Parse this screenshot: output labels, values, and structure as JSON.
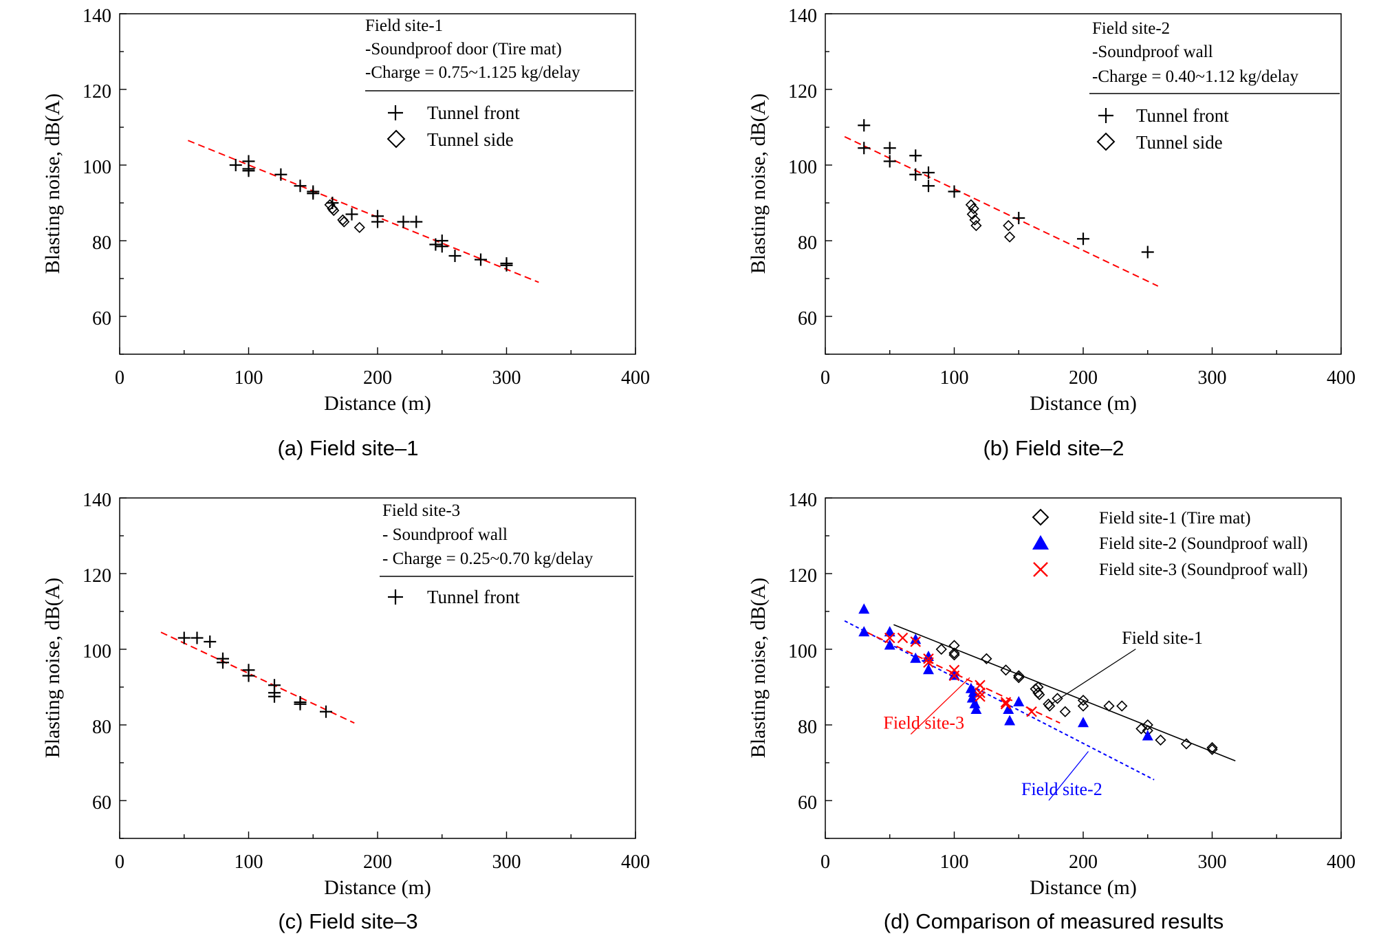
{
  "chart_data": [
    {
      "type": "scatter",
      "caption": "(a) Field site–1",
      "xlabel": "Distance (m)",
      "ylabel": "Blasting noise, dB(A)",
      "xlim": [
        0,
        400
      ],
      "ylim": [
        50,
        140
      ],
      "xticks": [
        "0",
        "100",
        "200",
        "300",
        "400"
      ],
      "yticks": [
        "60",
        "80",
        "100",
        "120",
        "140"
      ],
      "grid": false,
      "legend_position": "top-right",
      "legend_header": [
        "Field site-1",
        "-Soundproof door (Tire mat)",
        "-Charge = 0.75~1.125 kg/delay"
      ],
      "series": [
        {
          "name": "Tunnel front",
          "marker": "plus",
          "color": "#000000",
          "points": [
            [
              90,
              100
            ],
            [
              100,
              101
            ],
            [
              100,
              99
            ],
            [
              100,
              98.5
            ],
            [
              125,
              97.5
            ],
            [
              140,
              94.5
            ],
            [
              150,
              93
            ],
            [
              150,
              92.5
            ],
            [
              165,
              90
            ],
            [
              180,
              87
            ],
            [
              200,
              86.5
            ],
            [
              200,
              85
            ],
            [
              220,
              85
            ],
            [
              230,
              85
            ],
            [
              245,
              79
            ],
            [
              250,
              80
            ],
            [
              250,
              78.5
            ],
            [
              260,
              76
            ],
            [
              280,
              75
            ],
            [
              300,
              74
            ],
            [
              300,
              73.5
            ]
          ]
        },
        {
          "name": "Tunnel side",
          "marker": "diamond",
          "color": "#000000",
          "points": [
            [
              163,
              89.5
            ],
            [
              165,
              88.5
            ],
            [
              166,
              88
            ],
            [
              173,
              85.5
            ],
            [
              174,
              85
            ],
            [
              186,
              83.5
            ]
          ]
        },
        {
          "name": "",
          "type": "line",
          "style": "dashed",
          "color": "#ff0000",
          "points": [
            [
              53,
              106.5
            ],
            [
              325,
              69
            ]
          ]
        }
      ]
    },
    {
      "type": "scatter",
      "caption": "(b) Field site–2",
      "xlabel": "Distance (m)",
      "ylabel": "Blasting noise, dB(A)",
      "xlim": [
        0,
        400
      ],
      "ylim": [
        50,
        140
      ],
      "xticks": [
        "0",
        "100",
        "200",
        "300",
        "400"
      ],
      "yticks": [
        "60",
        "80",
        "100",
        "120",
        "140"
      ],
      "grid": false,
      "legend_position": "top-right",
      "legend_header": [
        "Field site-2",
        "-Soundproof wall",
        "-Charge = 0.40~1.12 kg/delay"
      ],
      "series": [
        {
          "name": "Tunnel front",
          "marker": "plus",
          "color": "#000000",
          "points": [
            [
              30,
              110.5
            ],
            [
              30,
              104.5
            ],
            [
              50,
              104.5
            ],
            [
              50,
              101
            ],
            [
              70,
              102.5
            ],
            [
              70,
              97.5
            ],
            [
              80,
              98
            ],
            [
              80,
              94.5
            ],
            [
              100,
              93
            ],
            [
              150,
              86
            ],
            [
              200,
              80.5
            ],
            [
              250,
              77
            ]
          ]
        },
        {
          "name": "Tunnel side",
          "marker": "diamond",
          "color": "#000000",
          "points": [
            [
              113,
              89.5
            ],
            [
              114,
              87
            ],
            [
              115,
              88.5
            ],
            [
              116,
              85.5
            ],
            [
              117,
              84
            ],
            [
              142,
              84
            ],
            [
              143,
              81
            ]
          ]
        },
        {
          "name": "",
          "type": "line",
          "style": "dashed",
          "color": "#ff0000",
          "points": [
            [
              15,
              107.5
            ],
            [
              258,
              68
            ]
          ]
        }
      ]
    },
    {
      "type": "scatter",
      "caption": "(c) Field site–3",
      "xlabel": "Distance (m)",
      "ylabel": "Blasting noise, dB(A)",
      "xlim": [
        0,
        400
      ],
      "ylim": [
        50,
        140
      ],
      "xticks": [
        "0",
        "100",
        "200",
        "300",
        "400"
      ],
      "yticks": [
        "60",
        "80",
        "100",
        "120",
        "140"
      ],
      "grid": false,
      "legend_position": "top-right",
      "legend_header": [
        "Field site-3",
        "- Soundproof wall",
        "- Charge = 0.25~0.70 kg/delay"
      ],
      "series": [
        {
          "name": "Tunnel front",
          "marker": "plus",
          "color": "#000000",
          "points": [
            [
              50,
              103
            ],
            [
              60,
              103
            ],
            [
              70,
              102
            ],
            [
              80,
              97.5
            ],
            [
              80,
              96.5
            ],
            [
              100,
              94.5
            ],
            [
              100,
              93
            ],
            [
              120,
              90.5
            ],
            [
              120,
              88.5
            ],
            [
              120,
              87.5
            ],
            [
              140,
              86
            ],
            [
              140,
              85.5
            ],
            [
              160,
              83.5
            ]
          ]
        },
        {
          "name": "",
          "type": "line",
          "style": "dashed",
          "color": "#ff0000",
          "points": [
            [
              32,
              104.5
            ],
            [
              182,
              80.5
            ]
          ]
        }
      ]
    },
    {
      "type": "scatter",
      "caption": "(d) Comparison of measured results",
      "xlabel": "Distance (m)",
      "ylabel": "Blasting noise, dB(A)",
      "xlim": [
        0,
        400
      ],
      "ylim": [
        50,
        140
      ],
      "xticks": [
        "0",
        "100",
        "200",
        "300",
        "400"
      ],
      "yticks": [
        "60",
        "80",
        "100",
        "120",
        "140"
      ],
      "grid": false,
      "legend_position": "top-right",
      "series": [
        {
          "name": "Field site-1 (Tire mat)",
          "marker": "diamond",
          "color": "#000000",
          "points": [
            [
              90,
              100
            ],
            [
              100,
              101
            ],
            [
              100,
              99
            ],
            [
              100,
              98.5
            ],
            [
              125,
              97.5
            ],
            [
              140,
              94.5
            ],
            [
              150,
              93
            ],
            [
              150,
              92.5
            ],
            [
              163,
              89.5
            ],
            [
              165,
              90
            ],
            [
              165,
              88.5
            ],
            [
              166,
              88
            ],
            [
              173,
              85.5
            ],
            [
              174,
              85
            ],
            [
              180,
              87
            ],
            [
              186,
              83.5
            ],
            [
              200,
              86.5
            ],
            [
              200,
              85
            ],
            [
              220,
              85
            ],
            [
              230,
              85
            ],
            [
              245,
              79
            ],
            [
              250,
              80
            ],
            [
              250,
              78.5
            ],
            [
              260,
              76
            ],
            [
              280,
              75
            ],
            [
              300,
              74
            ],
            [
              300,
              73.5
            ]
          ]
        },
        {
          "name": "Field site-2 (Soundproof wall)",
          "marker": "triangle",
          "color": "#0000ff",
          "points": [
            [
              30,
              110.5
            ],
            [
              30,
              104.5
            ],
            [
              50,
              104.5
            ],
            [
              50,
              101
            ],
            [
              70,
              102.5
            ],
            [
              70,
              97.5
            ],
            [
              80,
              98
            ],
            [
              80,
              94.5
            ],
            [
              100,
              93
            ],
            [
              113,
              89.5
            ],
            [
              114,
              87
            ],
            [
              115,
              88.5
            ],
            [
              116,
              85.5
            ],
            [
              117,
              84
            ],
            [
              142,
              84
            ],
            [
              143,
              81
            ],
            [
              150,
              86
            ],
            [
              200,
              80.5
            ],
            [
              250,
              77
            ]
          ]
        },
        {
          "name": "Field site-3 (Soundproof wall)",
          "marker": "cross",
          "color": "#ff0000",
          "points": [
            [
              50,
              103
            ],
            [
              60,
              103
            ],
            [
              70,
              102
            ],
            [
              80,
              97.5
            ],
            [
              80,
              96.5
            ],
            [
              100,
              94.5
            ],
            [
              100,
              93
            ],
            [
              120,
              90.5
            ],
            [
              120,
              88.5
            ],
            [
              120,
              87.5
            ],
            [
              140,
              86
            ],
            [
              140,
              85.5
            ],
            [
              160,
              83.5
            ]
          ]
        },
        {
          "name": "",
          "type": "line",
          "style": "solid",
          "color": "#000000",
          "points": [
            [
              53,
              106.5
            ],
            [
              318,
              70.5
            ]
          ]
        },
        {
          "name": "",
          "type": "line",
          "style": "dashed",
          "color": "#0000ff",
          "points": [
            [
              15,
              107.5
            ],
            [
              255,
              65.5
            ]
          ]
        },
        {
          "name": "",
          "type": "line",
          "style": "dashed",
          "color": "#ff0000",
          "points": [
            [
              32,
              104.5
            ],
            [
              182,
              80.5
            ]
          ]
        }
      ],
      "annotations": [
        {
          "text": "Field site-1",
          "color": "#000000",
          "at": [
            230,
            101.5
          ],
          "arrow_to": [
            175,
            85.5
          ]
        },
        {
          "text": "Field site-3",
          "color": "#ff0000",
          "at": [
            45,
            79
          ],
          "arrow_to": [
            112,
            92.5
          ]
        },
        {
          "text": "Field site-2",
          "color": "#0000ff",
          "at": [
            152,
            61.5
          ],
          "arrow_to": [
            204,
            73
          ]
        }
      ]
    }
  ]
}
